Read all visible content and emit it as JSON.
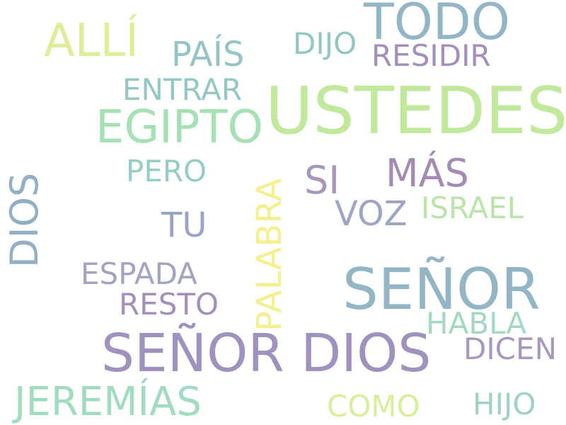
{
  "words": [
    {
      "text": "USTEDES",
      "color": "#c1e99b"
    },
    {
      "text": "SEÑOR DIOS",
      "color": "#9f92bf"
    },
    {
      "text": "SEÑOR",
      "color": "#93b6c7"
    },
    {
      "text": "TODO",
      "color": "#93b6c7"
    },
    {
      "text": "EGIPTO",
      "color": "#a6e1b5"
    },
    {
      "text": "ALLÍ",
      "color": "#dcef98"
    },
    {
      "text": "JEREMÍAS",
      "color": "#a1dcc0"
    },
    {
      "text": "DIOS",
      "color": "#93afc4"
    },
    {
      "text": "MÁS",
      "color": "#a48bb6"
    },
    {
      "text": "PAÍS",
      "color": "#94c4c6"
    },
    {
      "text": "PALABRA",
      "color": "#f6ef8d"
    },
    {
      "text": "SI",
      "color": "#a896bb"
    },
    {
      "text": "VOZ",
      "color": "#9ea6c5"
    },
    {
      "text": "TU",
      "color": "#9aa5c6"
    },
    {
      "text": "DIJO",
      "color": "#92c8c4"
    },
    {
      "text": "RESIDIR",
      "color": "#a48ebb"
    },
    {
      "text": "ENTRAR",
      "color": "#93c8c4"
    },
    {
      "text": "PERO",
      "color": "#94cdc5"
    },
    {
      "text": "ISRAEL",
      "color": "#b9e4aa"
    },
    {
      "text": "ESPADA",
      "color": "#a3a3c4"
    },
    {
      "text": "RESTO",
      "color": "#a48eba"
    },
    {
      "text": "HABLA",
      "color": "#a2dac1"
    },
    {
      "text": "DICEN",
      "color": "#a898bd"
    },
    {
      "text": "COMO",
      "color": "#d6ef98"
    },
    {
      "text": "HIJO",
      "color": "#9fd1c7"
    }
  ]
}
